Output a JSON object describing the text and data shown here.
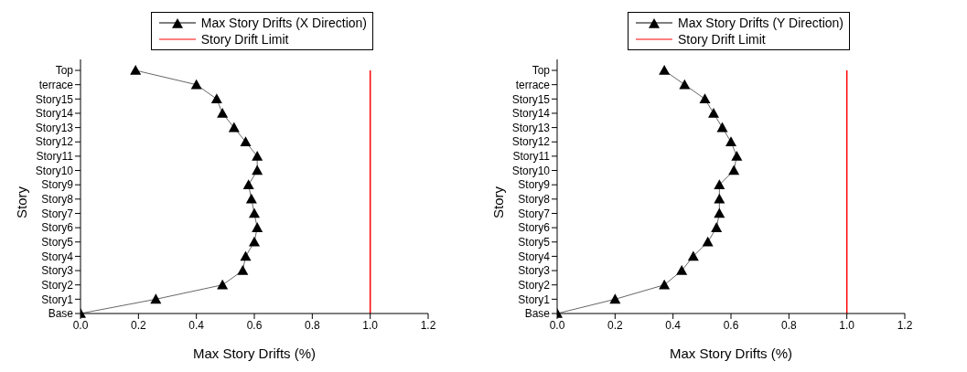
{
  "chart_data": [
    {
      "type": "line",
      "orientation": "horizontal",
      "xlabel": "Max Story Drifts (%)",
      "ylabel": "Story",
      "categories": [
        "Top",
        "terrace",
        "Story15",
        "Story14",
        "Story13",
        "Story12",
        "Story11",
        "Story10",
        "Story9",
        "Story8",
        "Story7",
        "Story6",
        "Story5",
        "Story4",
        "Story3",
        "Story2",
        "Story1",
        "Base"
      ],
      "series": [
        {
          "name": "Max Story Drifts (X Direction)",
          "color": "#000000",
          "values": [
            0.19,
            0.4,
            0.47,
            0.49,
            0.53,
            0.57,
            0.61,
            0.61,
            0.58,
            0.59,
            0.6,
            0.61,
            0.6,
            0.57,
            0.56,
            0.49,
            0.26,
            0
          ]
        }
      ],
      "marker": "triangle",
      "xlim": [
        0,
        1.2
      ],
      "xticks": [
        {
          "value": 0,
          "label": "0.0"
        },
        {
          "value": 0.2,
          "label": "0.2"
        },
        {
          "value": 0.4,
          "label": "0.4"
        },
        {
          "value": 0.6,
          "label": "0.6"
        },
        {
          "value": 0.8,
          "label": "0.8"
        },
        {
          "value": 1,
          "label": "1.0"
        },
        {
          "value": 1.2,
          "label": "1.2"
        }
      ],
      "ref_lines": [
        {
          "axis": "x",
          "value": 1,
          "label": "Story Drift Limit",
          "color": "#ff0000"
        }
      ],
      "legend": "top right"
    },
    {
      "type": "line",
      "orientation": "horizontal",
      "xlabel": "Max Story Drifts (%)",
      "ylabel": "Story",
      "categories": [
        "Top",
        "terrace",
        "Story15",
        "Story14",
        "Story13",
        "Story12",
        "Story11",
        "Story10",
        "Story9",
        "Story8",
        "Story7",
        "Story6",
        "Story5",
        "Story4",
        "Story3",
        "Story2",
        "Story1",
        "Base"
      ],
      "series": [
        {
          "name": "Max Story Drifts (Y Direction)",
          "color": "#000000",
          "values": [
            0.37,
            0.44,
            0.51,
            0.54,
            0.57,
            0.6,
            0.62,
            0.61,
            0.56,
            0.56,
            0.56,
            0.55,
            0.52,
            0.47,
            0.43,
            0.37,
            0.2,
            0
          ]
        }
      ],
      "marker": "triangle",
      "xlim": [
        0,
        1.2
      ],
      "xticks": [
        {
          "value": 0,
          "label": "0.0"
        },
        {
          "value": 0.2,
          "label": "0.2"
        },
        {
          "value": 0.4,
          "label": "0.4"
        },
        {
          "value": 0.6,
          "label": "0.6"
        },
        {
          "value": 0.8,
          "label": "0.8"
        },
        {
          "value": 1,
          "label": "1.0"
        },
        {
          "value": 1.2,
          "label": "1.2"
        }
      ],
      "ref_lines": [
        {
          "axis": "x",
          "value": 1,
          "label": "Story Drift Limit",
          "color": "#ff0000"
        }
      ],
      "legend": "top right"
    }
  ]
}
